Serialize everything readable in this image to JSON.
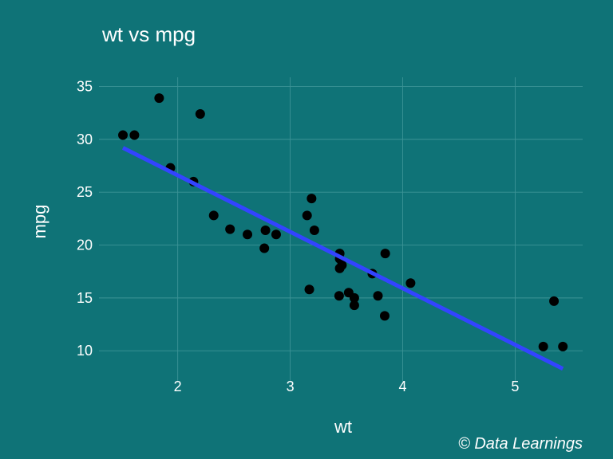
{
  "chart_data": {
    "type": "scatter",
    "title": "wt vs mpg",
    "xlabel": "wt",
    "ylabel": "mpg",
    "caption": "© Data Learnings",
    "xlim": [
      1.3,
      5.6
    ],
    "ylim": [
      7,
      37
    ],
    "xticks": [
      2,
      3,
      4,
      5
    ],
    "yticks": [
      10,
      15,
      20,
      25,
      30,
      35
    ],
    "xtick_labels": [
      "2",
      "3",
      "4",
      "5"
    ],
    "ytick_labels": [
      "10",
      "15",
      "20",
      "25",
      "30",
      "35"
    ],
    "grid": true,
    "points": [
      {
        "x": 1.513,
        "y": 30.4
      },
      {
        "x": 1.615,
        "y": 30.4
      },
      {
        "x": 1.835,
        "y": 33.9
      },
      {
        "x": 1.935,
        "y": 27.3
      },
      {
        "x": 2.14,
        "y": 26.0
      },
      {
        "x": 2.2,
        "y": 32.4
      },
      {
        "x": 2.32,
        "y": 22.8
      },
      {
        "x": 2.465,
        "y": 21.5
      },
      {
        "x": 2.62,
        "y": 21.0
      },
      {
        "x": 2.77,
        "y": 19.7
      },
      {
        "x": 2.78,
        "y": 21.4
      },
      {
        "x": 2.875,
        "y": 21.0
      },
      {
        "x": 3.15,
        "y": 22.8
      },
      {
        "x": 3.17,
        "y": 15.8
      },
      {
        "x": 3.19,
        "y": 24.4
      },
      {
        "x": 3.215,
        "y": 21.4
      },
      {
        "x": 3.435,
        "y": 15.2
      },
      {
        "x": 3.44,
        "y": 18.7
      },
      {
        "x": 3.44,
        "y": 17.8
      },
      {
        "x": 3.44,
        "y": 19.2
      },
      {
        "x": 3.46,
        "y": 18.1
      },
      {
        "x": 3.52,
        "y": 15.5
      },
      {
        "x": 3.57,
        "y": 14.3
      },
      {
        "x": 3.57,
        "y": 15.0
      },
      {
        "x": 3.73,
        "y": 17.3
      },
      {
        "x": 3.78,
        "y": 15.2
      },
      {
        "x": 3.84,
        "y": 13.3
      },
      {
        "x": 3.845,
        "y": 19.2
      },
      {
        "x": 4.07,
        "y": 16.4
      },
      {
        "x": 5.25,
        "y": 10.4
      },
      {
        "x": 5.345,
        "y": 14.7
      },
      {
        "x": 5.424,
        "y": 10.4
      }
    ],
    "fit": {
      "type": "linear",
      "intercept": 37.285,
      "slope": -5.344,
      "x_start": 1.513,
      "x_end": 5.424
    },
    "colors": {
      "background": "#0f7377",
      "gridline": "#3c9396",
      "points": "#000000",
      "fit_line": "#3344ff",
      "text": "#ffffff"
    }
  }
}
